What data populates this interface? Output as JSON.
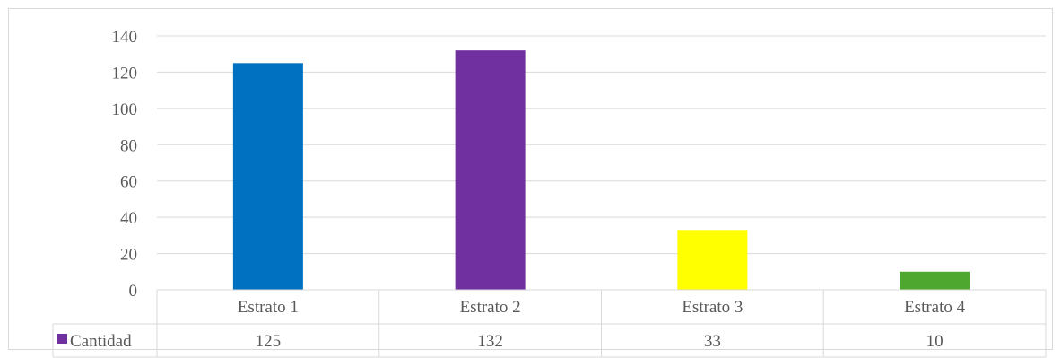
{
  "chart_data": {
    "type": "bar",
    "title": "",
    "xlabel": "",
    "ylabel": "",
    "categories": [
      "Estrato 1",
      "Estrato 2",
      "Estrato 3",
      "Estrato 4"
    ],
    "series": [
      {
        "name": "Cantidad",
        "values": [
          125,
          132,
          33,
          10
        ],
        "legend_color": "#7030a0"
      }
    ],
    "bar_colors": [
      "#0070c0",
      "#7030a0",
      "#ffff00",
      "#4ea72e"
    ],
    "ylim": [
      0,
      140
    ],
    "yticks": [
      0,
      20,
      40,
      60,
      80,
      100,
      120,
      140
    ],
    "grid": true,
    "legend": "data-table",
    "data_table": {
      "series_label": "Cantidad",
      "values": [
        "125",
        "132",
        "33",
        "10"
      ]
    }
  }
}
